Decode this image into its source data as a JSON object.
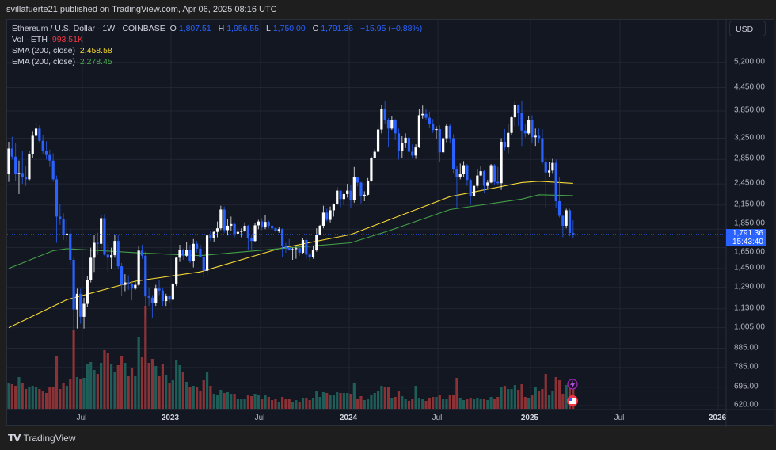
{
  "header": {
    "publisher_line": "svillafuerte21 published on TradingView.com, Apr 06, 2025 08:16 UTC"
  },
  "legend": {
    "symbol": "Ethereum / U.S. Dollar · 1W · COINBASE",
    "open_label": "O",
    "open": "1,807.51",
    "high_label": "H",
    "high": "1,956.55",
    "low_label": "L",
    "low": "1,750.00",
    "close_label": "C",
    "close": "1,791.36",
    "change": "−15.95 (−0.88%)",
    "vol_label": "Vol · ETH",
    "vol_value": "993.51K",
    "sma_label": "SMA (200, close)",
    "sma_value": "2,458.58",
    "ema_label": "EMA (200, close)",
    "ema_value": "2,278.45"
  },
  "currency_button": "USD",
  "current_price": {
    "price": "1,791.36",
    "countdown": "15:43:40"
  },
  "footer": {
    "brand": "TradingView",
    "logo_mark": "TV"
  },
  "colors": {
    "background": "#131722",
    "up_candle": "#ffffff",
    "down_candle": "#2962ff",
    "volume_up": "#1f5d58",
    "volume_down": "#8a3236",
    "sma": "#f5d835",
    "ema": "#43a047",
    "price_tag": "#2962ff"
  },
  "icons": [
    "lightning-event-icon",
    "us-flag-event-icon"
  ],
  "chart_data": {
    "type": "candlestick",
    "title": "Ethereum / U.S. Dollar · 1W · COINBASE",
    "y_scale": "log",
    "ylim": [
      620,
      5200
    ],
    "grid": true,
    "interval": "1W",
    "first_candle": "2022-01-31",
    "price_ticks": [
      "5,200.00",
      "4,450.00",
      "3,850.00",
      "3,250.00",
      "2,850.00",
      "2,450.00",
      "2,150.00",
      "1,850.00",
      "1,650.00",
      "1,450.00",
      "1,290.00",
      "1,130.00",
      "1,005.00",
      "885.00",
      "785.00",
      "695.00",
      "620.00"
    ],
    "price_tick_values": [
      5200,
      4450,
      3850,
      3250,
      2850,
      2450,
      2150,
      1850,
      1650,
      1450,
      1290,
      1130,
      1005,
      885,
      785,
      695,
      620
    ],
    "time_ticks": [
      {
        "label": "Jul",
        "major": false
      },
      {
        "label": "2023",
        "major": true
      },
      {
        "label": "Jul",
        "major": false
      },
      {
        "label": "2024",
        "major": true
      },
      {
        "label": "Jul",
        "major": false
      },
      {
        "label": "2025",
        "major": true
      },
      {
        "label": "Jul",
        "major": false
      },
      {
        "label": "2026",
        "major": true
      }
    ],
    "ohlc": [
      [
        2600,
        3180,
        2480,
        3050
      ],
      [
        3050,
        3280,
        2850,
        2900
      ],
      [
        2900,
        3160,
        2500,
        2600
      ],
      [
        2600,
        2830,
        2300,
        2620
      ],
      [
        2620,
        3000,
        2450,
        2550
      ],
      [
        2550,
        2730,
        2420,
        2520
      ],
      [
        2520,
        3000,
        2500,
        2940
      ],
      [
        2940,
        3400,
        2880,
        3300
      ],
      [
        3300,
        3580,
        3270,
        3450
      ],
      [
        3450,
        3520,
        3170,
        3200
      ],
      [
        3200,
        3310,
        2950,
        3000
      ],
      [
        3000,
        3190,
        2850,
        2930
      ],
      [
        2930,
        3030,
        2720,
        2830
      ],
      [
        2830,
        2960,
        2480,
        2520
      ],
      [
        2520,
        2580,
        1700,
        2000
      ],
      [
        2000,
        2160,
        1900,
        1970
      ],
      [
        1970,
        2040,
        1730,
        1790
      ],
      [
        1790,
        1970,
        1720,
        1800
      ],
      [
        1800,
        1850,
        1480,
        1530
      ],
      [
        1530,
        1550,
        880,
        1125
      ],
      [
        1125,
        1280,
        1000,
        1240
      ],
      [
        1240,
        1280,
        1030,
        1075
      ],
      [
        1075,
        1210,
        1000,
        1165
      ],
      [
        1165,
        1380,
        1140,
        1350
      ],
      [
        1350,
        1650,
        1330,
        1550
      ],
      [
        1550,
        1780,
        1420,
        1700
      ],
      [
        1700,
        1810,
        1580,
        1690
      ],
      [
        1690,
        2020,
        1640,
        1980
      ],
      [
        1980,
        2030,
        1570,
        1580
      ],
      [
        1580,
        1700,
        1420,
        1550
      ],
      [
        1550,
        1650,
        1450,
        1575
      ],
      [
        1575,
        1790,
        1550,
        1720
      ],
      [
        1720,
        1790,
        1450,
        1470
      ],
      [
        1470,
        1500,
        1220,
        1310
      ],
      [
        1310,
        1400,
        1260,
        1330
      ],
      [
        1330,
        1390,
        1270,
        1320
      ],
      [
        1320,
        1340,
        1190,
        1280
      ],
      [
        1280,
        1340,
        1270,
        1310
      ],
      [
        1310,
        1670,
        1300,
        1620
      ],
      [
        1620,
        1680,
        1540,
        1570
      ],
      [
        1570,
        1610,
        1080,
        1220
      ],
      [
        1220,
        1290,
        1150,
        1210
      ],
      [
        1210,
        1230,
        1070,
        1170
      ],
      [
        1170,
        1310,
        1150,
        1280
      ],
      [
        1280,
        1350,
        1230,
        1265
      ],
      [
        1265,
        1290,
        1150,
        1185
      ],
      [
        1185,
        1240,
        1150,
        1220
      ],
      [
        1220,
        1230,
        1170,
        1195
      ],
      [
        1195,
        1330,
        1190,
        1320
      ],
      [
        1320,
        1560,
        1300,
        1550
      ],
      [
        1550,
        1680,
        1510,
        1630
      ],
      [
        1630,
        1640,
        1530,
        1570
      ],
      [
        1570,
        1710,
        1560,
        1630
      ],
      [
        1630,
        1680,
        1500,
        1515
      ],
      [
        1515,
        1740,
        1460,
        1690
      ],
      [
        1690,
        1720,
        1600,
        1640
      ],
      [
        1640,
        1680,
        1550,
        1560
      ],
      [
        1560,
        1580,
        1370,
        1430
      ],
      [
        1430,
        1800,
        1390,
        1780
      ],
      [
        1780,
        1830,
        1720,
        1750
      ],
      [
        1750,
        1830,
        1710,
        1820
      ],
      [
        1820,
        1940,
        1760,
        1860
      ],
      [
        1860,
        2140,
        1840,
        2090
      ],
      [
        2090,
        2130,
        1810,
        1840
      ],
      [
        1840,
        1970,
        1780,
        1890
      ],
      [
        1890,
        2000,
        1830,
        1910
      ],
      [
        1910,
        1930,
        1760,
        1800
      ],
      [
        1800,
        1850,
        1780,
        1820
      ],
      [
        1820,
        1860,
        1760,
        1830
      ],
      [
        1830,
        1930,
        1820,
        1890
      ],
      [
        1890,
        1900,
        1630,
        1750
      ],
      [
        1750,
        1780,
        1630,
        1720
      ],
      [
        1720,
        1920,
        1710,
        1895
      ],
      [
        1895,
        1960,
        1850,
        1940
      ],
      [
        1940,
        1980,
        1840,
        1870
      ],
      [
        1870,
        2020,
        1850,
        1935
      ],
      [
        1935,
        1950,
        1860,
        1890
      ],
      [
        1890,
        1900,
        1840,
        1860
      ],
      [
        1860,
        1870,
        1820,
        1830
      ],
      [
        1830,
        1870,
        1810,
        1850
      ],
      [
        1850,
        1860,
        1560,
        1670
      ],
      [
        1670,
        1700,
        1600,
        1650
      ],
      [
        1650,
        1740,
        1620,
        1630
      ],
      [
        1630,
        1650,
        1530,
        1635
      ],
      [
        1635,
        1660,
        1540,
        1645
      ],
      [
        1645,
        1650,
        1570,
        1600
      ],
      [
        1600,
        1750,
        1590,
        1730
      ],
      [
        1730,
        1750,
        1540,
        1580
      ],
      [
        1580,
        1600,
        1520,
        1555
      ],
      [
        1555,
        1670,
        1540,
        1630
      ],
      [
        1630,
        1860,
        1610,
        1790
      ],
      [
        1790,
        1900,
        1780,
        1890
      ],
      [
        1890,
        2140,
        1860,
        2050
      ],
      [
        2050,
        2100,
        1940,
        1960
      ],
      [
        1960,
        2130,
        1930,
        2080
      ],
      [
        2080,
        2170,
        2000,
        2160
      ],
      [
        2160,
        2400,
        2150,
        2350
      ],
      [
        2350,
        2340,
        2120,
        2230
      ],
      [
        2230,
        2340,
        2150,
        2300
      ],
      [
        2300,
        2450,
        2250,
        2350
      ],
      [
        2350,
        2430,
        2110,
        2220
      ],
      [
        2220,
        2720,
        2180,
        2550
      ],
      [
        2550,
        2560,
        2410,
        2470
      ],
      [
        2470,
        2480,
        2170,
        2270
      ],
      [
        2270,
        2340,
        2200,
        2290
      ],
      [
        2290,
        2540,
        2280,
        2500
      ],
      [
        2500,
        2900,
        2480,
        2880
      ],
      [
        2880,
        3040,
        2880,
        2990
      ],
      [
        2990,
        3520,
        2990,
        3430
      ],
      [
        3430,
        4000,
        3350,
        3900
      ],
      [
        3900,
        4090,
        3560,
        3640
      ],
      [
        3640,
        3680,
        3070,
        3450
      ],
      [
        3450,
        3730,
        3420,
        3640
      ],
      [
        3640,
        3660,
        3210,
        3350
      ],
      [
        3350,
        3450,
        2850,
        3000
      ],
      [
        3000,
        3290,
        2870,
        3150
      ],
      [
        3150,
        3350,
        3060,
        3260
      ],
      [
        3260,
        3290,
        2810,
        2990
      ],
      [
        2990,
        3130,
        2870,
        2920
      ],
      [
        2920,
        3130,
        2860,
        3070
      ],
      [
        3070,
        3890,
        3060,
        3750
      ],
      [
        3750,
        3980,
        3670,
        3780
      ],
      [
        3780,
        3890,
        3650,
        3690
      ],
      [
        3690,
        3830,
        3470,
        3560
      ],
      [
        3560,
        3660,
        3360,
        3420
      ],
      [
        3420,
        3500,
        3240,
        3440
      ],
      [
        3440,
        3520,
        2810,
        2980
      ],
      [
        2980,
        3270,
        2960,
        3250
      ],
      [
        3250,
        3560,
        3170,
        3510
      ],
      [
        3510,
        3560,
        3150,
        3250
      ],
      [
        3250,
        3330,
        2620,
        2690
      ],
      [
        2690,
        2730,
        2110,
        2560
      ],
      [
        2560,
        2780,
        2520,
        2610
      ],
      [
        2610,
        2820,
        2560,
        2750
      ],
      [
        2750,
        2770,
        2420,
        2510
      ],
      [
        2510,
        2530,
        2150,
        2270
      ],
      [
        2270,
        2440,
        2200,
        2420
      ],
      [
        2420,
        2690,
        2390,
        2580
      ],
      [
        2580,
        2730,
        2570,
        2650
      ],
      [
        2650,
        2670,
        2310,
        2420
      ],
      [
        2420,
        2510,
        2370,
        2470
      ],
      [
        2470,
        2770,
        2460,
        2750
      ],
      [
        2750,
        2770,
        2440,
        2480
      ],
      [
        2480,
        2720,
        2440,
        2460
      ],
      [
        2460,
        3250,
        2360,
        3180
      ],
      [
        3180,
        3440,
        3020,
        3070
      ],
      [
        3070,
        3550,
        2960,
        3360
      ],
      [
        3360,
        3740,
        3320,
        3700
      ],
      [
        3700,
        4090,
        3500,
        3990
      ],
      [
        3990,
        4010,
        3510,
        3800
      ],
      [
        3800,
        4110,
        3100,
        3410
      ],
      [
        3410,
        3540,
        3270,
        3350
      ],
      [
        3350,
        3740,
        3320,
        3640
      ],
      [
        3640,
        3750,
        3160,
        3270
      ],
      [
        3270,
        3450,
        3100,
        3300
      ],
      [
        3300,
        3450,
        3160,
        3250
      ],
      [
        3250,
        3440,
        2770,
        2800
      ],
      [
        2800,
        2890,
        2120,
        2630
      ],
      [
        2630,
        2800,
        2560,
        2660
      ],
      [
        2660,
        2860,
        2620,
        2790
      ],
      [
        2790,
        2850,
        2110,
        2200
      ],
      [
        2200,
        2550,
        1990,
        2010
      ],
      [
        2010,
        2010,
        1760,
        1890
      ],
      [
        1890,
        2100,
        1860,
        2080
      ],
      [
        2080,
        2100,
        1770,
        1807.51
      ],
      [
        1807.51,
        1956.55,
        1750,
        1791.36
      ]
    ],
    "volume_k": [
      1320,
      1240,
      1160,
      1600,
      1320,
      1000,
      1120,
      1160,
      1080,
      1000,
      920,
      800,
      1120,
      1080,
      2680,
      1000,
      1320,
      1160,
      1480,
      3960,
      1600,
      1520,
      1560,
      2240,
      2360,
      1960,
      1760,
      2320,
      2960,
      2840,
      2280,
      1840,
      2200,
      2680,
      2320,
      1680,
      2080,
      1680,
      3600,
      2600,
      5200,
      2320,
      2520,
      2160,
      1680,
      2280,
      1720,
      1320,
      1440,
      2440,
      2200,
      1880,
      1360,
      1080,
      1160,
      1080,
      880,
      1440,
      1880,
      1160,
      760,
      720,
      960,
      800,
      840,
      760,
      760,
      480,
      480,
      520,
      720,
      640,
      760,
      720,
      520,
      680,
      600,
      440,
      520,
      360,
      600,
      480,
      520,
      360,
      440,
      360,
      560,
      560,
      440,
      560,
      880,
      600,
      840,
      800,
      720,
      680,
      840,
      800,
      800,
      800,
      760,
      1280,
      520,
      640,
      440,
      520,
      680,
      800,
      920,
      1160,
      1120,
      1120,
      560,
      600,
      920,
      640,
      520,
      400,
      520,
      1160,
      560,
      520,
      400,
      560,
      600,
      600,
      680,
      480,
      480,
      680,
      720,
      1560,
      560,
      440,
      520,
      560,
      480,
      560,
      520,
      480,
      440,
      600,
      520,
      600,
      1080,
      1160,
      1000,
      1000,
      1200,
      960,
      1240,
      600,
      560,
      680,
      1120,
      920,
      1000,
      1760,
      720,
      920,
      1600,
      1440,
      760,
      1200,
      1120,
      993.51
    ],
    "series": [
      {
        "name": "SMA (200, close)",
        "points": [
          [
            "2022-01-31",
            1005
          ],
          [
            "2022-05-30",
            1195
          ],
          [
            "2022-10-17",
            1340
          ],
          [
            "2023-02-27",
            1420
          ],
          [
            "2023-08-07",
            1640
          ],
          [
            "2024-01-01",
            1790
          ],
          [
            "2024-03-18",
            1957
          ],
          [
            "2024-07-22",
            2264
          ],
          [
            "2024-12-16",
            2470
          ],
          [
            "2025-01-20",
            2490
          ],
          [
            "2025-03-31",
            2458.58
          ]
        ]
      },
      {
        "name": "EMA (200, close)",
        "points": [
          [
            "2022-01-31",
            1450
          ],
          [
            "2022-05-02",
            1620
          ],
          [
            "2022-05-30",
            1640
          ],
          [
            "2022-10-17",
            1600
          ],
          [
            "2023-02-27",
            1570
          ],
          [
            "2023-08-07",
            1640
          ],
          [
            "2024-01-01",
            1700
          ],
          [
            "2024-03-18",
            1830
          ],
          [
            "2024-07-22",
            2090
          ],
          [
            "2024-12-16",
            2230
          ],
          [
            "2025-01-20",
            2290
          ],
          [
            "2025-03-31",
            2278.45
          ]
        ]
      }
    ]
  }
}
